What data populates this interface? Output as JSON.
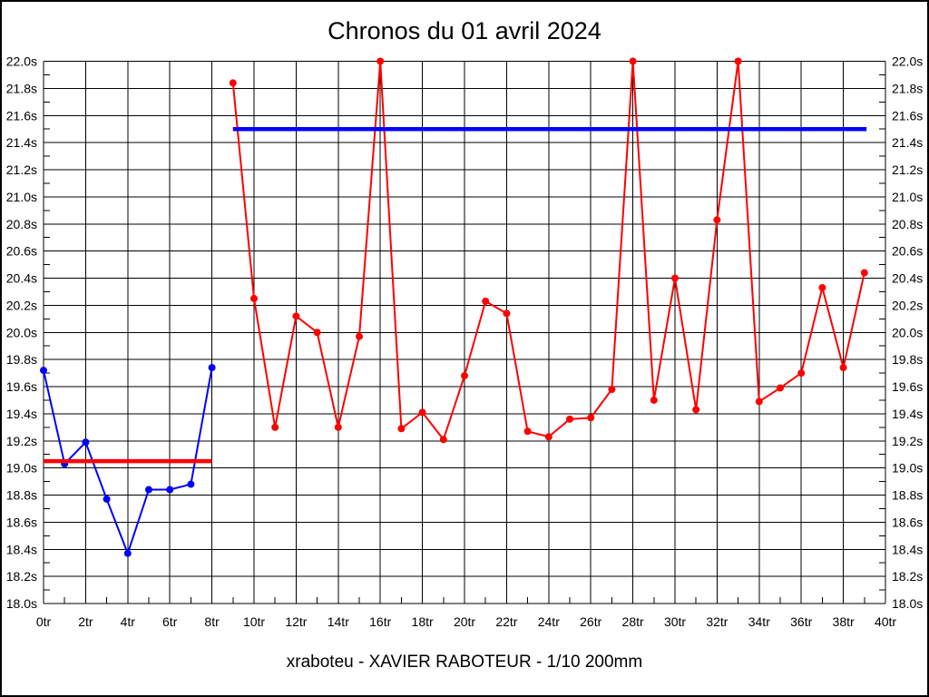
{
  "page": {
    "background": "#ffffff",
    "border_color": "#000000"
  },
  "chart_data": {
    "type": "line",
    "title": "Chronos du 01 avril 2024",
    "footer": "xraboteu - XAVIER RABOTEUR - 1/10 200mm",
    "x_unit": "tr",
    "y_unit": "s",
    "xlim": [
      0,
      40
    ],
    "ylim": [
      18.0,
      22.0
    ],
    "x_major_step": 2,
    "x_minor_step": 1,
    "y_major_step": 0.2,
    "y_minor_step": 0.1,
    "grid": true,
    "legend": "none",
    "x_tick_labels": [
      "0tr",
      "2tr",
      "4tr",
      "6tr",
      "8tr",
      "10tr",
      "12tr",
      "14tr",
      "16tr",
      "18tr",
      "20tr",
      "22tr",
      "24tr",
      "26tr",
      "28tr",
      "30tr",
      "32tr",
      "34tr",
      "36tr",
      "38tr",
      "40tr"
    ],
    "y_tick_labels": [
      "22.0s",
      "21.8s",
      "21.6s",
      "21.4s",
      "21.2s",
      "21.0s",
      "20.8s",
      "20.6s",
      "20.4s",
      "20.2s",
      "20.0s",
      "19.8s",
      "19.6s",
      "19.4s",
      "19.2s",
      "19.0s",
      "18.8s",
      "18.6s",
      "18.4s",
      "18.2s",
      "18.0s"
    ],
    "series": [
      {
        "name": "blue-session",
        "color": "#0000ff",
        "x": [
          0,
          1,
          2,
          3,
          4,
          5,
          6,
          7,
          8
        ],
        "values": [
          19.72,
          19.03,
          19.19,
          18.77,
          18.37,
          18.84,
          18.84,
          18.88,
          19.74
        ]
      },
      {
        "name": "red-session",
        "color": "#ff0000",
        "x": [
          9,
          10,
          11,
          12,
          13,
          14,
          15,
          16,
          17,
          18,
          19,
          20,
          21,
          22,
          23,
          24,
          25,
          26,
          27,
          28,
          29,
          30,
          31,
          32,
          33,
          34,
          35,
          36,
          37,
          38,
          39
        ],
        "values": [
          21.84,
          20.25,
          19.3,
          20.12,
          20.0,
          19.3,
          19.97,
          22.0,
          19.29,
          19.41,
          19.21,
          19.68,
          20.23,
          20.14,
          19.27,
          19.23,
          19.36,
          19.37,
          19.58,
          22.0,
          19.5,
          20.4,
          19.43,
          20.83,
          22.0,
          19.49,
          19.59,
          19.7,
          20.33,
          19.74,
          20.44
        ]
      }
    ],
    "reference_lines": [
      {
        "name": "red-reference-line",
        "color": "#ff0000",
        "value": 19.05,
        "x_start": 0,
        "x_end": 8
      },
      {
        "name": "blue-reference-line",
        "color": "#0000ff",
        "value": 21.5,
        "x_start": 9,
        "x_end": 39.1
      }
    ]
  }
}
